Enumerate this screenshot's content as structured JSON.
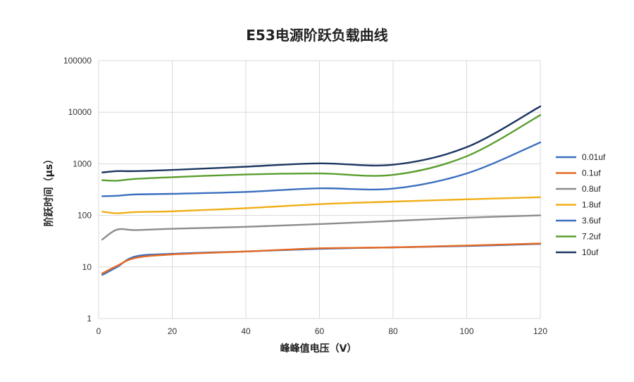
{
  "chart_data": {
    "type": "line",
    "title": "E53电源阶跃负载曲线",
    "xlabel": "峰峰值电压（V）",
    "ylabel": "阶跃时间（μs）",
    "xlim": [
      0,
      120
    ],
    "ylim": [
      1,
      100000
    ],
    "yscale": "log",
    "x_ticks": [
      "0",
      "20",
      "40",
      "60",
      "80",
      "100",
      "120"
    ],
    "y_ticks": [
      "1",
      "10",
      "100",
      "1000",
      "10000",
      "100000"
    ],
    "grid": true,
    "legend_position": "right",
    "series": [
      {
        "name": "0.01uf",
        "color": "#3A6FBF",
        "x": [
          1,
          5,
          10,
          20,
          40,
          60,
          80,
          100,
          120
        ],
        "y": [
          7,
          10,
          16,
          18,
          20,
          22.5,
          24,
          25.5,
          28
        ]
      },
      {
        "name": "0.1uf",
        "color": "#E46A26",
        "x": [
          1,
          5,
          10,
          20,
          40,
          60,
          80,
          100,
          120
        ],
        "y": [
          7.5,
          10.5,
          15,
          17.5,
          20,
          23,
          24,
          26,
          28.5
        ]
      },
      {
        "name": "0.8uf",
        "color": "#8C8C8C",
        "x": [
          1,
          5,
          10,
          20,
          40,
          60,
          80,
          100,
          120
        ],
        "y": [
          34,
          53,
          52,
          55,
          60,
          68,
          78,
          90,
          100
        ]
      },
      {
        "name": "1.8uf",
        "color": "#F0AE16",
        "x": [
          1,
          5,
          10,
          20,
          40,
          60,
          80,
          100,
          120
        ],
        "y": [
          118,
          110,
          116,
          120,
          138,
          165,
          185,
          205,
          225
        ]
      },
      {
        "name": "3.6uf",
        "color": "#3A6FBF",
        "x": [
          1,
          5,
          10,
          20,
          40,
          60,
          80,
          100,
          120
        ],
        "y": [
          235,
          240,
          255,
          262,
          285,
          335,
          330,
          650,
          2600
        ]
      },
      {
        "name": "7.2uf",
        "color": "#5A9E2E",
        "x": [
          1,
          5,
          10,
          20,
          40,
          60,
          80,
          100,
          120
        ],
        "y": [
          480,
          470,
          510,
          550,
          620,
          650,
          610,
          1400,
          8800
        ]
      },
      {
        "name": "10uf",
        "color": "#1C3761",
        "x": [
          1,
          5,
          10,
          20,
          40,
          60,
          80,
          100,
          120
        ],
        "y": [
          680,
          720,
          720,
          760,
          880,
          1020,
          960,
          2100,
          13000
        ]
      }
    ]
  }
}
